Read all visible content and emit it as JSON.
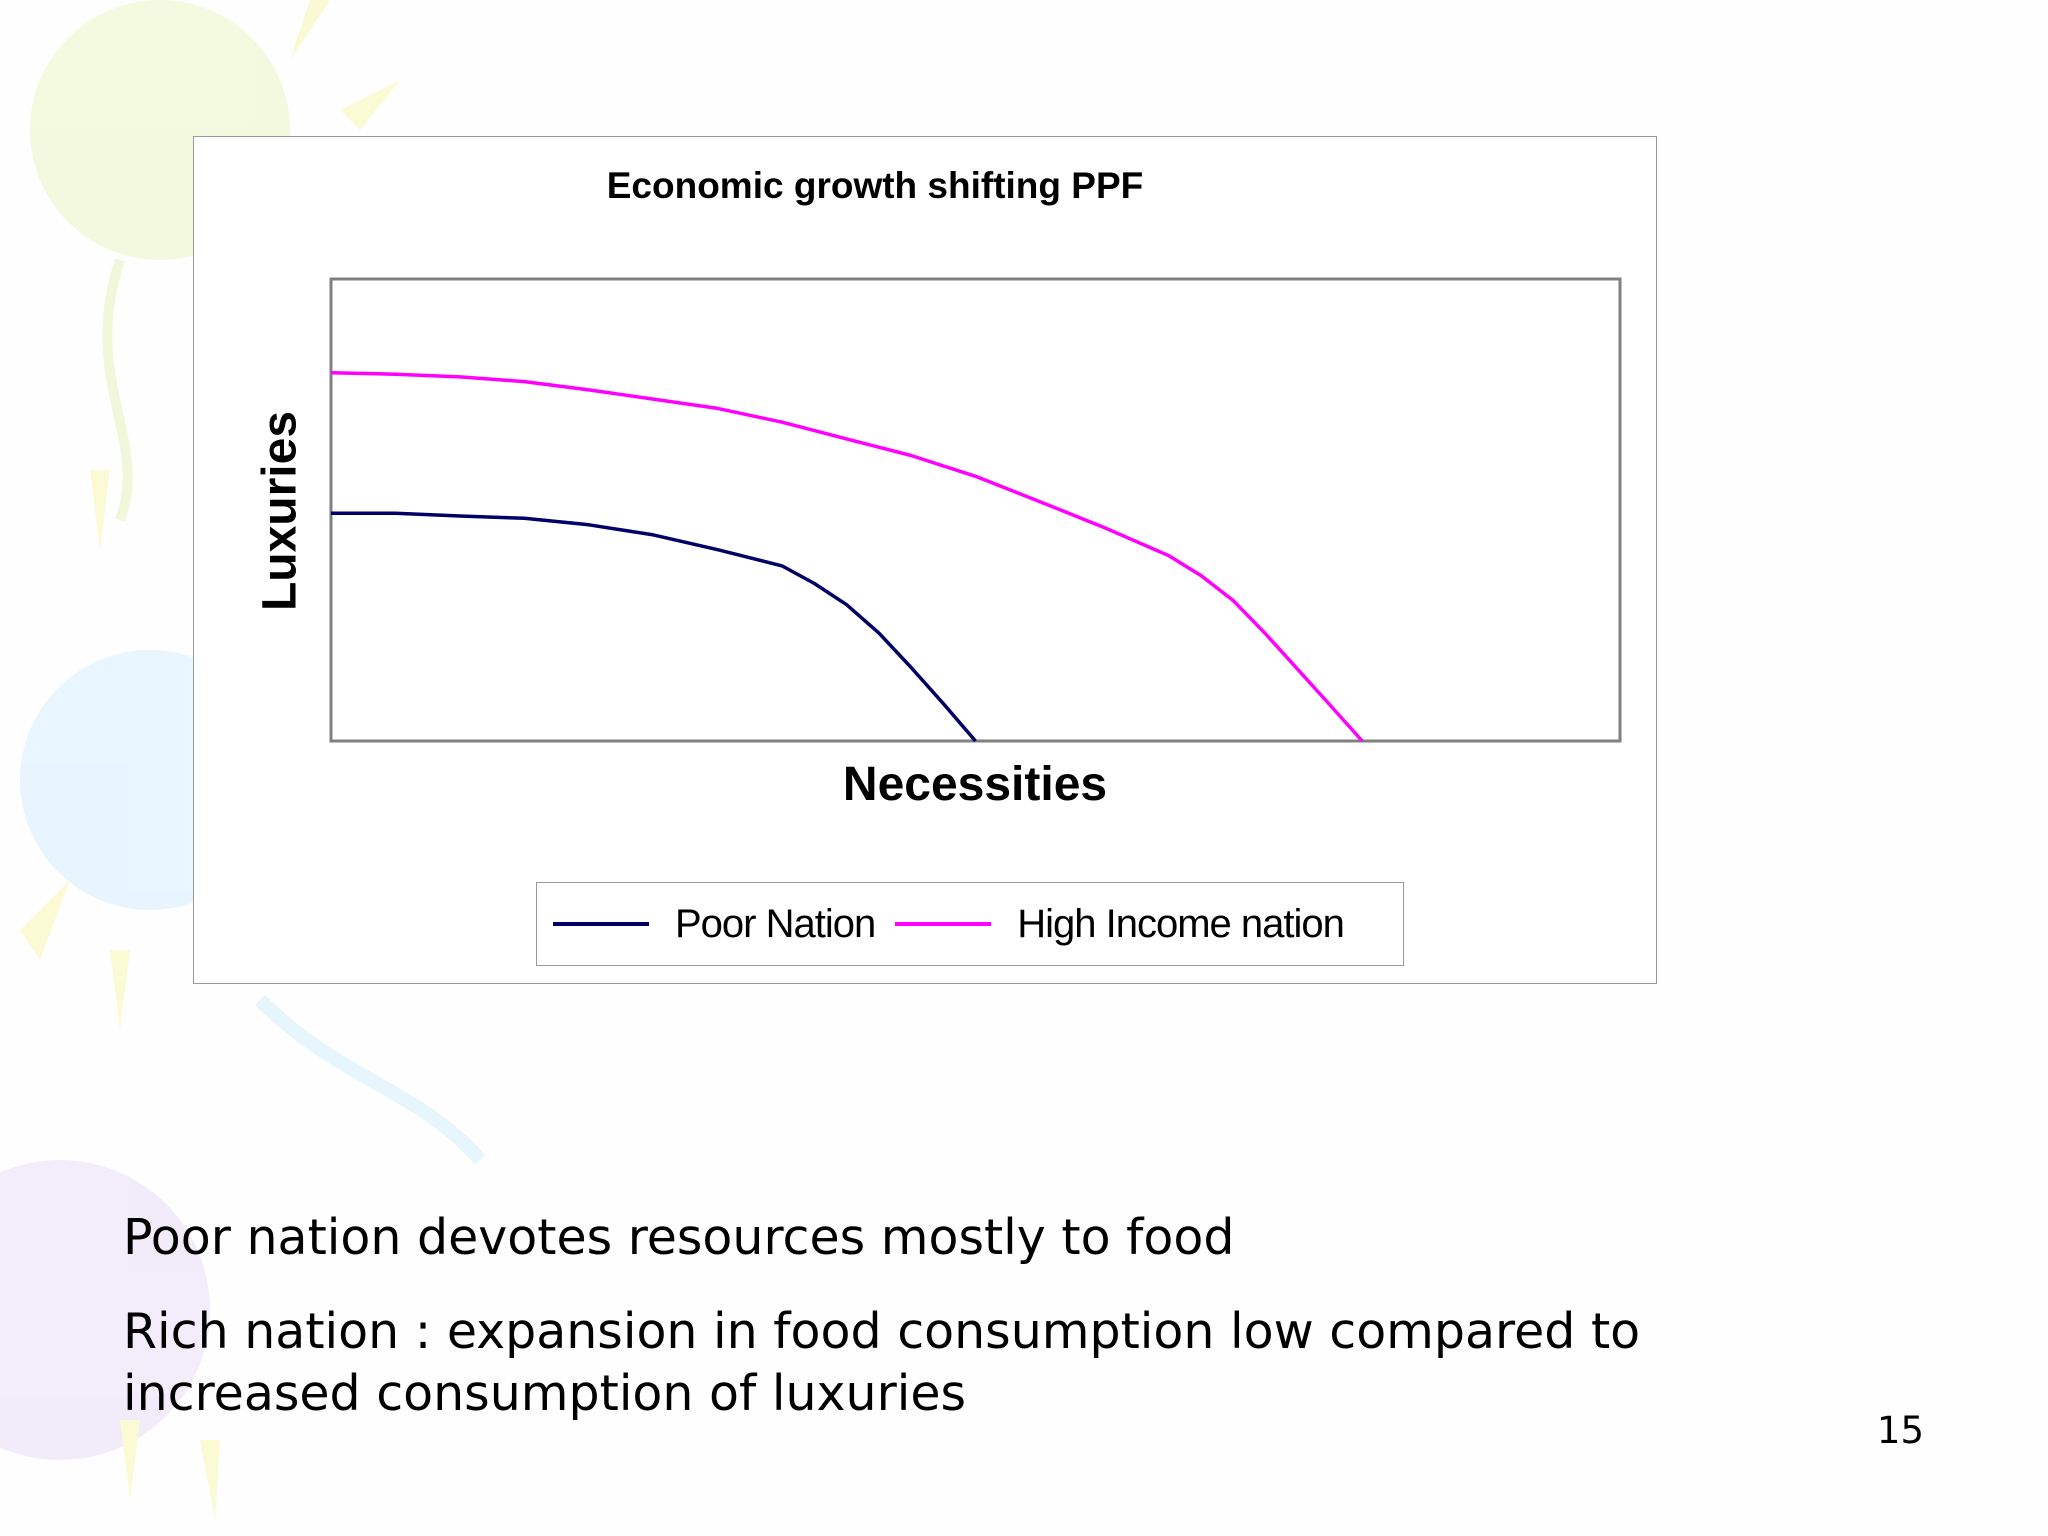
{
  "chart_data": {
    "type": "line",
    "title": "Economic growth shifting PPF",
    "xlabel": "Necessities",
    "ylabel": "Luxuries",
    "xlim": [
      0,
      10
    ],
    "ylim": [
      0,
      10
    ],
    "grid": false,
    "legend_position": "bottom",
    "series": [
      {
        "name": "Poor Nation",
        "color": "#000066",
        "x": [
          0,
          0.5,
          1.0,
          1.5,
          2.0,
          2.5,
          3.0,
          3.5,
          3.75,
          4.0,
          4.25,
          4.5,
          4.75,
          5.0
        ],
        "y": [
          4.93,
          4.93,
          4.87,
          4.82,
          4.68,
          4.46,
          4.14,
          3.79,
          3.41,
          2.95,
          2.34,
          1.59,
          0.81,
          0.0
        ]
      },
      {
        "name": "High Income nation",
        "color": "#ff00ff",
        "x": [
          0,
          0.5,
          1.0,
          1.5,
          2.0,
          2.5,
          3.0,
          3.5,
          4.0,
          4.5,
          5.0,
          5.5,
          6.0,
          6.5,
          6.75,
          7.0,
          7.25,
          7.5,
          7.75,
          8.0
        ],
        "y": [
          7.97,
          7.94,
          7.88,
          7.78,
          7.6,
          7.4,
          7.2,
          6.9,
          6.54,
          6.18,
          5.73,
          5.18,
          4.62,
          4.01,
          3.58,
          3.04,
          2.32,
          1.55,
          0.78,
          0.0
        ]
      }
    ]
  },
  "legend": {
    "items": [
      {
        "label": "Poor Nation",
        "color": "#000066"
      },
      {
        "label": "High Income nation",
        "color": "#ff00ff"
      }
    ]
  },
  "text": {
    "line1": "Poor nation devotes resources mostly to food",
    "line2": "Rich nation : expansion in food consumption low compared to increased consumption of luxuries"
  },
  "page_number": "15"
}
